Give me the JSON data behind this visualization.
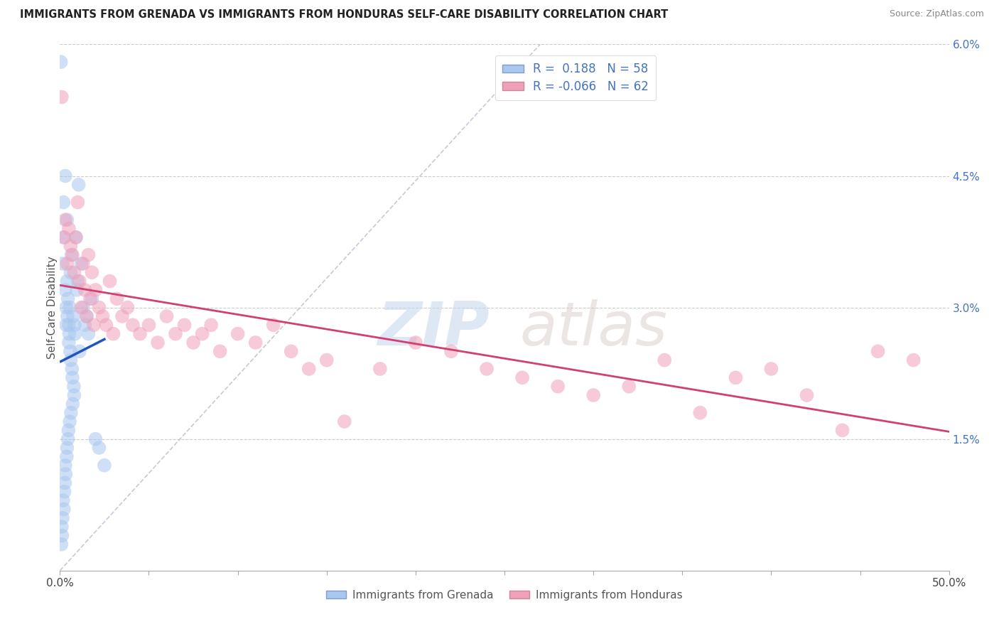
{
  "title": "IMMIGRANTS FROM GRENADA VS IMMIGRANTS FROM HONDURAS SELF-CARE DISABILITY CORRELATION CHART",
  "source": "Source: ZipAtlas.com",
  "ylabel": "Self-Care Disability",
  "ylabel_right_ticks": [
    "6.0%",
    "4.5%",
    "3.0%",
    "1.5%",
    ""
  ],
  "ylabel_right_vals": [
    6.0,
    4.5,
    3.0,
    1.5,
    0.0
  ],
  "xmin": 0.0,
  "xmax": 50.0,
  "ymin": 0.0,
  "ymax": 6.0,
  "grenada_R": 0.188,
  "grenada_N": 58,
  "honduras_R": -0.066,
  "honduras_N": 62,
  "grenada_color": "#a8c8f0",
  "grenada_line_color": "#2255bb",
  "honduras_color": "#f0a0b8",
  "honduras_line_color": "#d04070",
  "background_color": "#ffffff",
  "grenada_x": [
    0.05,
    0.08,
    0.1,
    0.12,
    0.15,
    0.15,
    0.18,
    0.2,
    0.22,
    0.25,
    0.25,
    0.28,
    0.3,
    0.3,
    0.3,
    0.32,
    0.35,
    0.35,
    0.38,
    0.4,
    0.4,
    0.4,
    0.42,
    0.45,
    0.45,
    0.48,
    0.5,
    0.5,
    0.52,
    0.55,
    0.55,
    0.58,
    0.6,
    0.6,
    0.62,
    0.65,
    0.68,
    0.7,
    0.72,
    0.75,
    0.78,
    0.8,
    0.82,
    0.85,
    0.9,
    0.95,
    1.0,
    1.05,
    1.1,
    1.2,
    1.3,
    1.4,
    1.5,
    1.6,
    1.8,
    2.0,
    2.2,
    2.5
  ],
  "grenada_y": [
    5.8,
    0.3,
    0.5,
    0.4,
    3.5,
    0.6,
    0.8,
    4.2,
    0.7,
    3.8,
    0.9,
    1.0,
    4.5,
    3.2,
    1.2,
    1.1,
    3.0,
    2.8,
    1.3,
    4.0,
    3.3,
    1.4,
    2.9,
    3.1,
    1.5,
    1.6,
    2.8,
    2.6,
    2.7,
    3.0,
    1.7,
    2.5,
    3.4,
    2.4,
    1.8,
    3.6,
    2.3,
    2.2,
    1.9,
    2.9,
    2.1,
    2.0,
    2.8,
    2.7,
    3.8,
    3.2,
    3.3,
    4.4,
    2.5,
    3.5,
    3.0,
    2.8,
    2.9,
    2.7,
    3.1,
    1.5,
    1.4,
    1.2
  ],
  "honduras_x": [
    0.1,
    0.2,
    0.3,
    0.4,
    0.5,
    0.6,
    0.7,
    0.8,
    0.9,
    1.0,
    1.1,
    1.2,
    1.3,
    1.4,
    1.5,
    1.6,
    1.7,
    1.8,
    1.9,
    2.0,
    2.2,
    2.4,
    2.6,
    2.8,
    3.0,
    3.2,
    3.5,
    3.8,
    4.1,
    4.5,
    5.0,
    5.5,
    6.0,
    6.5,
    7.0,
    7.5,
    8.0,
    8.5,
    9.0,
    10.0,
    11.0,
    12.0,
    13.0,
    14.0,
    15.0,
    16.0,
    18.0,
    20.0,
    22.0,
    24.0,
    26.0,
    28.0,
    30.0,
    32.0,
    34.0,
    36.0,
    38.0,
    40.0,
    42.0,
    44.0,
    46.0,
    48.0
  ],
  "honduras_y": [
    5.4,
    3.8,
    4.0,
    3.5,
    3.9,
    3.7,
    3.6,
    3.4,
    3.8,
    4.2,
    3.3,
    3.0,
    3.5,
    3.2,
    2.9,
    3.6,
    3.1,
    3.4,
    2.8,
    3.2,
    3.0,
    2.9,
    2.8,
    3.3,
    2.7,
    3.1,
    2.9,
    3.0,
    2.8,
    2.7,
    2.8,
    2.6,
    2.9,
    2.7,
    2.8,
    2.6,
    2.7,
    2.8,
    2.5,
    2.7,
    2.6,
    2.8,
    2.5,
    2.3,
    2.4,
    1.7,
    2.3,
    2.6,
    2.5,
    2.3,
    2.2,
    2.1,
    2.0,
    2.1,
    2.4,
    1.8,
    2.2,
    2.3,
    2.0,
    1.6,
    2.5,
    2.4
  ]
}
